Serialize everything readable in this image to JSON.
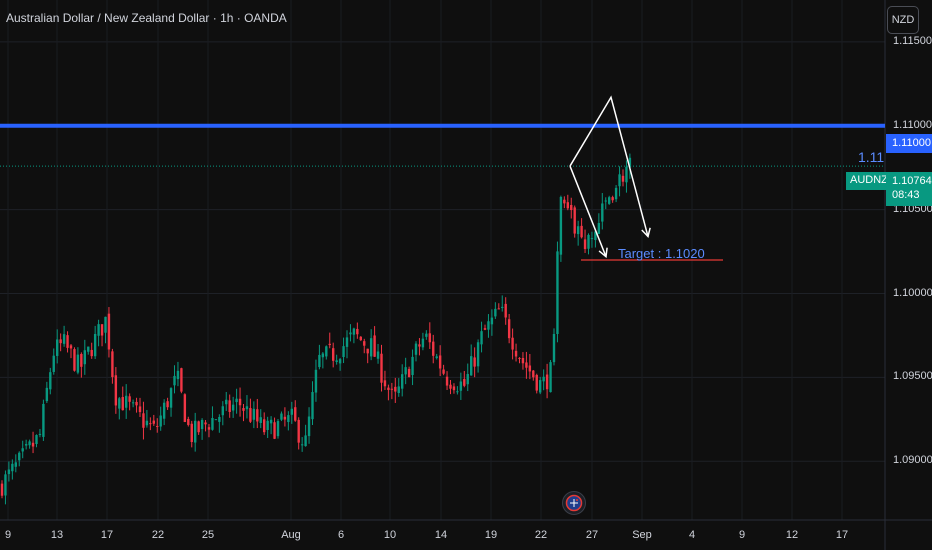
{
  "header": {
    "title": "Australian Dollar / New Zealand Dollar · 1h · OANDA",
    "currency_button": "NZD"
  },
  "price_axis": {
    "ticks": [
      "1.11500",
      "1.11000",
      "1.10500",
      "1.10000",
      "1.09500",
      "1.09000"
    ]
  },
  "time_axis": {
    "ticks": [
      "9",
      "13",
      "17",
      "22",
      "25",
      "Aug",
      "6",
      "10",
      "14",
      "19",
      "22",
      "27",
      "Sep",
      "4",
      "9",
      "12",
      "17"
    ]
  },
  "tags": {
    "level_price": "1.11000",
    "symbol": "AUDNZD",
    "last_price": "1.10764",
    "countdown": "08:43"
  },
  "annotations": {
    "level_label": "1.11",
    "target_label": "Target : 1.1020"
  },
  "colors": {
    "background": "#0f0f0f",
    "up": "#089981",
    "down": "#f23645",
    "level_line": "#2962ff",
    "target_line": "#e53935",
    "drawing": "#ffffff"
  },
  "icons": {
    "logo": "flag-badge-icon"
  },
  "chart_data": {
    "type": "candlestick",
    "symbol": "AUDNZD",
    "timeframe": "1h",
    "ylim": [
      1.0865,
      1.1175
    ],
    "x_ticks": [
      "9",
      "13",
      "17",
      "22",
      "25",
      "Aug",
      "6",
      "10",
      "14",
      "19",
      "22",
      "27",
      "Sep",
      "4",
      "9",
      "12",
      "17"
    ],
    "y_ticks": [
      1.115,
      1.11,
      1.105,
      1.1,
      1.095,
      1.09
    ],
    "close_path": [
      {
        "t": 0,
        "p": 1.0885
      },
      {
        "t": 0.02,
        "p": 1.0898
      },
      {
        "t": 0.045,
        "p": 1.0915
      },
      {
        "t": 0.06,
        "p": 1.0965
      },
      {
        "t": 0.072,
        "p": 1.097
      },
      {
        "t": 0.09,
        "p": 1.0955
      },
      {
        "t": 0.11,
        "p": 1.0975
      },
      {
        "t": 0.12,
        "p": 1.0985
      },
      {
        "t": 0.13,
        "p": 1.094
      },
      {
        "t": 0.15,
        "p": 1.093
      },
      {
        "t": 0.175,
        "p": 1.0918
      },
      {
        "t": 0.2,
        "p": 1.095
      },
      {
        "t": 0.215,
        "p": 1.0915
      },
      {
        "t": 0.24,
        "p": 1.0925
      },
      {
        "t": 0.27,
        "p": 1.0935
      },
      {
        "t": 0.3,
        "p": 1.0918
      },
      {
        "t": 0.33,
        "p": 1.0925
      },
      {
        "t": 0.345,
        "p": 1.091
      },
      {
        "t": 0.36,
        "p": 1.096
      },
      {
        "t": 0.38,
        "p": 1.0965
      },
      {
        "t": 0.4,
        "p": 1.0975
      },
      {
        "t": 0.42,
        "p": 1.0968
      },
      {
        "t": 0.445,
        "p": 1.0935
      },
      {
        "t": 0.465,
        "p": 1.096
      },
      {
        "t": 0.48,
        "p": 1.0975
      },
      {
        "t": 0.505,
        "p": 1.095
      },
      {
        "t": 0.525,
        "p": 1.0945
      },
      {
        "t": 0.545,
        "p": 1.0975
      },
      {
        "t": 0.565,
        "p": 1.099
      },
      {
        "t": 0.59,
        "p": 1.096
      },
      {
        "t": 0.612,
        "p": 1.0945
      },
      {
        "t": 0.625,
        "p": 1.0955
      },
      {
        "t": 0.632,
        "p": 1.1055
      },
      {
        "t": 0.65,
        "p": 1.104
      },
      {
        "t": 0.665,
        "p": 1.1028
      },
      {
        "t": 0.69,
        "p": 1.106
      },
      {
        "t": 0.71,
        "p": 1.1076
      }
    ],
    "horizontal_levels": [
      {
        "price": 1.11,
        "label": "1.11"
      },
      {
        "price": 1.1076,
        "style": "dotted",
        "label": "AUDNZD"
      },
      {
        "price": 1.102,
        "label": "Target : 1.1020"
      }
    ],
    "projection": [
      {
        "date": "23 Aug",
        "price": 1.1076
      },
      {
        "date": "26 Aug",
        "price": 1.1117
      },
      {
        "date": "29 Aug",
        "price": 1.1034
      }
    ],
    "projection_alt": [
      {
        "date": "23 Aug",
        "price": 1.1076
      },
      {
        "date": "25 Aug",
        "price": 1.1022
      }
    ]
  }
}
